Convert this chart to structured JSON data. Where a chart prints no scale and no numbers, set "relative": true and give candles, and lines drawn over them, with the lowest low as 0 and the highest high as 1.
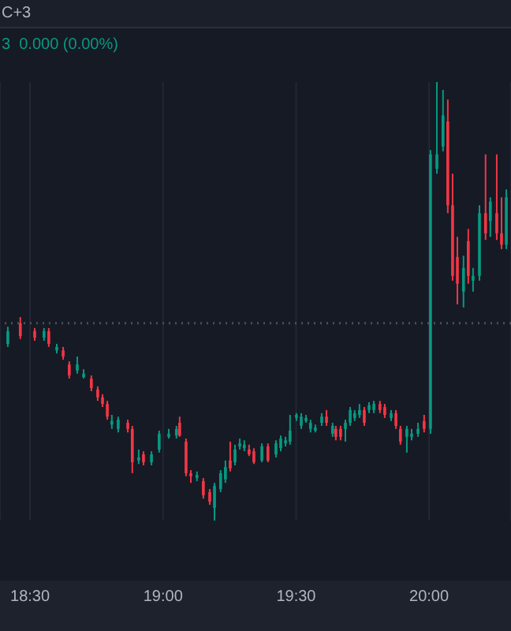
{
  "chart_data": {
    "type": "candlestick",
    "relative": true,
    "annotations": [
      "C+3",
      "3  0.000 (0.00%)"
    ],
    "x": [
      18.417,
      18.464,
      18.518,
      18.553,
      18.571,
      18.601,
      18.625,
      18.648,
      18.678,
      18.702,
      18.731,
      18.755,
      18.773,
      18.791,
      18.808,
      18.832,
      18.868,
      18.885,
      18.909,
      18.927,
      18.957,
      18.986,
      19.022,
      19.051,
      19.063,
      19.087,
      19.105,
      19.128,
      19.152,
      19.176,
      19.194,
      19.217,
      19.235,
      19.253,
      19.271,
      19.289,
      19.306,
      19.324,
      19.342,
      19.372,
      19.395,
      19.425,
      19.443,
      19.461,
      19.478,
      19.502,
      19.52,
      19.538,
      19.555,
      19.573,
      19.597,
      19.615,
      19.638,
      19.65,
      19.668,
      19.686,
      19.704,
      19.721,
      19.739,
      19.757,
      19.775,
      19.793,
      19.816,
      19.834,
      19.858,
      19.876,
      19.893,
      19.917,
      19.935,
      19.959,
      19.982,
      20.006,
      20.03,
      20.053,
      20.071,
      20.089,
      20.107,
      20.13,
      20.148,
      20.166,
      20.19,
      20.213,
      20.231,
      20.255,
      20.273,
      20.291
    ],
    "ohlc": [
      [
        0.403,
        0.442,
        0.396,
        0.432
      ],
      [
        0.45,
        0.464,
        0.414,
        0.421
      ],
      [
        0.432,
        0.439,
        0.41,
        0.417
      ],
      [
        0.417,
        0.439,
        0.41,
        0.432
      ],
      [
        0.432,
        0.439,
        0.396,
        0.403
      ],
      [
        0.388,
        0.403,
        0.381,
        0.396
      ],
      [
        0.388,
        0.396,
        0.367,
        0.374
      ],
      [
        0.356,
        0.363,
        0.324,
        0.331
      ],
      [
        0.342,
        0.374,
        0.335,
        0.356
      ],
      [
        0.327,
        0.345,
        0.324,
        0.335
      ],
      [
        0.324,
        0.331,
        0.295,
        0.302
      ],
      [
        0.299,
        0.306,
        0.273,
        0.281
      ],
      [
        0.281,
        0.288,
        0.259,
        0.266
      ],
      [
        0.266,
        0.273,
        0.23,
        0.237
      ],
      [
        0.219,
        0.241,
        0.209,
        0.227
      ],
      [
        0.209,
        0.237,
        0.201,
        0.23
      ],
      [
        0.223,
        0.23,
        0.201,
        0.209
      ],
      [
        0.209,
        0.216,
        0.108,
        0.133
      ],
      [
        0.137,
        0.162,
        0.129,
        0.144
      ],
      [
        0.151,
        0.158,
        0.126,
        0.133
      ],
      [
        0.133,
        0.158,
        0.126,
        0.151
      ],
      [
        0.162,
        0.205,
        0.155,
        0.198
      ],
      [
        0.191,
        0.209,
        0.187,
        0.198
      ],
      [
        0.194,
        0.216,
        0.187,
        0.209
      ],
      [
        0.223,
        0.237,
        0.191,
        0.194
      ],
      [
        0.18,
        0.187,
        0.101,
        0.108
      ],
      [
        0.108,
        0.115,
        0.086,
        0.101
      ],
      [
        0.097,
        0.112,
        0.09,
        0.104
      ],
      [
        0.09,
        0.097,
        0.05,
        0.058
      ],
      [
        0.065,
        0.072,
        0.036,
        0.043
      ],
      [
        0.029,
        0.086,
        0,
        0.079
      ],
      [
        0.072,
        0.115,
        0.065,
        0.108
      ],
      [
        0.094,
        0.137,
        0.086,
        0.122
      ],
      [
        0.137,
        0.18,
        0.112,
        0.119
      ],
      [
        0.133,
        0.173,
        0.126,
        0.162
      ],
      [
        0.169,
        0.187,
        0.162,
        0.176
      ],
      [
        0.165,
        0.183,
        0.158,
        0.173
      ],
      [
        0.162,
        0.173,
        0.147,
        0.151
      ],
      [
        0.158,
        0.165,
        0.129,
        0.133
      ],
      [
        0.137,
        0.176,
        0.133,
        0.169
      ],
      [
        0.169,
        0.176,
        0.133,
        0.137
      ],
      [
        0.151,
        0.183,
        0.144,
        0.176
      ],
      [
        0.165,
        0.194,
        0.158,
        0.187
      ],
      [
        0.176,
        0.191,
        0.169,
        0.183
      ],
      [
        0.18,
        0.241,
        0.173,
        0.205
      ],
      [
        0.234,
        0.245,
        0.227,
        0.241
      ],
      [
        0.216,
        0.245,
        0.209,
        0.237
      ],
      [
        0.227,
        0.241,
        0.223,
        0.234
      ],
      [
        0.209,
        0.23,
        0.201,
        0.223
      ],
      [
        0.205,
        0.219,
        0.201,
        0.212
      ],
      [
        0.223,
        0.245,
        0.216,
        0.237
      ],
      [
        0.237,
        0.252,
        0.216,
        0.223
      ],
      [
        0.198,
        0.223,
        0.191,
        0.216
      ],
      [
        0.209,
        0.216,
        0.183,
        0.191
      ],
      [
        0.209,
        0.216,
        0.183,
        0.191
      ],
      [
        0.209,
        0.23,
        0.18,
        0.223
      ],
      [
        0.223,
        0.259,
        0.216,
        0.252
      ],
      [
        0.234,
        0.252,
        0.227,
        0.245
      ],
      [
        0.241,
        0.266,
        0.234,
        0.252
      ],
      [
        0.252,
        0.259,
        0.216,
        0.223
      ],
      [
        0.252,
        0.27,
        0.245,
        0.263
      ],
      [
        0.252,
        0.273,
        0.245,
        0.266
      ],
      [
        0.266,
        0.273,
        0.245,
        0.252
      ],
      [
        0.259,
        0.266,
        0.234,
        0.241
      ],
      [
        0.234,
        0.252,
        0.227,
        0.245
      ],
      [
        0.245,
        0.252,
        0.209,
        0.216
      ],
      [
        0.209,
        0.216,
        0.173,
        0.18
      ],
      [
        0.191,
        0.216,
        0.155,
        0.209
      ],
      [
        0.191,
        0.209,
        0.183,
        0.198
      ],
      [
        0.198,
        0.223,
        0.191,
        0.209
      ],
      [
        0.227,
        0.241,
        0.201,
        0.209
      ],
      [
        0.209,
        0.845,
        0.198,
        0.835
      ],
      [
        0.802,
        1,
        0.791,
        0.835
      ],
      [
        0.853,
        0.982,
        0.842,
        0.924
      ],
      [
        0.91,
        0.96,
        0.701,
        0.719
      ],
      [
        0.719,
        0.791,
        0.547,
        0.558
      ],
      [
        0.601,
        0.647,
        0.493,
        0.54
      ],
      [
        0.522,
        0.604,
        0.486,
        0.576
      ],
      [
        0.637,
        0.665,
        0.54,
        0.558
      ],
      [
        0.547,
        0.576,
        0.522,
        0.558
      ],
      [
        0.558,
        0.719,
        0.547,
        0.701
      ],
      [
        0.701,
        0.835,
        0.64,
        0.655
      ],
      [
        0.683,
        0.737,
        0.647,
        0.727
      ],
      [
        0.701,
        0.835,
        0.64,
        0.655
      ],
      [
        0.655,
        0.737,
        0.619,
        0.629
      ],
      [
        0.629,
        0.755,
        0.619,
        0.737
      ]
    ],
    "colors": [
      "#089981",
      "#f23645",
      "#f23645",
      "#089981",
      "#f23645",
      "#089981",
      "#f23645",
      "#f23645",
      "#089981",
      "#089981",
      "#f23645",
      "#f23645",
      "#f23645",
      "#f23645",
      "#089981",
      "#089981",
      "#f23645",
      "#f23645",
      "#089981",
      "#f23645",
      "#089981",
      "#089981",
      "#089981",
      "#089981",
      "#f23645",
      "#f23645",
      "#f23645",
      "#089981",
      "#f23645",
      "#f23645",
      "#089981",
      "#089981",
      "#089981",
      "#f23645",
      "#089981",
      "#089981",
      "#089981",
      "#f23645",
      "#f23645",
      "#089981",
      "#f23645",
      "#089981",
      "#089981",
      "#089981",
      "#089981",
      "#089981",
      "#089981",
      "#089981",
      "#089981",
      "#089981",
      "#089981",
      "#f23645",
      "#089981",
      "#f23645",
      "#f23645",
      "#089981",
      "#089981",
      "#089981",
      "#089981",
      "#f23645",
      "#089981",
      "#089981",
      "#f23645",
      "#f23645",
      "#089981",
      "#f23645",
      "#f23645",
      "#089981",
      "#089981",
      "#089981",
      "#f23645",
      "#089981",
      "#089981",
      "#089981",
      "#f23645",
      "#f23645",
      "#f23645",
      "#089981",
      "#f23645",
      "#089981",
      "#089981",
      "#f23645",
      "#089981",
      "#f23645",
      "#f23645",
      "#089981"
    ],
    "xlim": [
      18.387,
      20.308
    ],
    "xticks": [
      {
        "value": 18.5,
        "label": "18:30"
      },
      {
        "value": 19,
        "label": "19:00"
      },
      {
        "value": 19.5,
        "label": "19:30"
      },
      {
        "value": 20,
        "label": "20:00"
      }
    ],
    "ref_lines": [
      {
        "axis": "y",
        "value": 0.45,
        "color": "#4a4f5c",
        "line_style": "dotted"
      }
    ],
    "grid": "x",
    "tick_labels": "x"
  }
}
